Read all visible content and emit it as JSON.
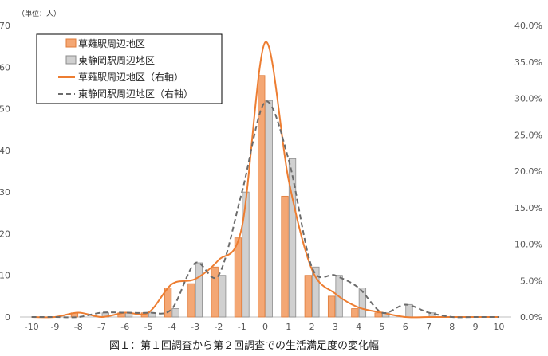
{
  "chart_data": {
    "type": "bar",
    "caption": "図１：第１回調査から第２回調査での生活満足度の変化幅",
    "unit_label": "（単位：人）",
    "categories": [
      "-10",
      "-9",
      "-8",
      "-7",
      "-6",
      "-5",
      "-4",
      "-3",
      "-2",
      "-1",
      "0",
      "1",
      "2",
      "3",
      "4",
      "5",
      "6",
      "7",
      "8",
      "9",
      "10"
    ],
    "y_left": {
      "min": 0,
      "max": 70,
      "step": 10,
      "ticks": [
        "0",
        "10",
        "20",
        "30",
        "40",
        "50",
        "60",
        "70"
      ]
    },
    "y_right": {
      "min": 0,
      "max": 40,
      "step": 5,
      "ticks": [
        "0.0%",
        "5.0%",
        "10.0%",
        "15.0%",
        "20.0%",
        "25.0%",
        "30.0%",
        "35.0%",
        "40.0%"
      ]
    },
    "legend_position": "top-left",
    "grid": false,
    "series": [
      {
        "name": "草薙駅周辺地区",
        "kind": "bar",
        "axis": "left",
        "color": "#F4A774",
        "stroke": "#E07B39",
        "values": [
          0,
          0,
          1,
          0,
          1,
          1,
          7,
          8,
          12,
          19,
          58,
          29,
          10,
          5,
          2,
          1,
          0,
          0,
          0,
          0,
          0
        ]
      },
      {
        "name": "東静岡駅周辺地区",
        "kind": "bar",
        "axis": "left",
        "color": "#D0D0D0",
        "stroke": "#8C8C8C",
        "values": [
          0,
          0,
          0,
          1,
          1,
          1,
          2,
          13,
          10,
          30,
          52,
          38,
          12,
          10,
          7,
          1,
          3,
          1,
          0,
          0,
          0
        ]
      },
      {
        "name": "草薙駅周辺地区（右軸）",
        "kind": "line",
        "axis": "right",
        "color": "#ED7D31",
        "dash": "none",
        "values": [
          0,
          0,
          0.6,
          0,
          0.6,
          0.6,
          4.5,
          5.2,
          7.8,
          12.3,
          37.7,
          18.8,
          6.5,
          3.2,
          1.3,
          0.6,
          0,
          0,
          0,
          0,
          0
        ]
      },
      {
        "name": "東静岡駅周辺地区（右軸）",
        "kind": "line",
        "axis": "right",
        "color": "#6B6B6B",
        "dash": "6,4",
        "values": [
          0,
          0,
          0,
          0.6,
          0.6,
          0.6,
          1.1,
          7.4,
          5.7,
          17.1,
          29.5,
          21.6,
          6.8,
          5.7,
          4.0,
          0.6,
          1.7,
          0.6,
          0,
          0,
          0
        ]
      }
    ]
  }
}
